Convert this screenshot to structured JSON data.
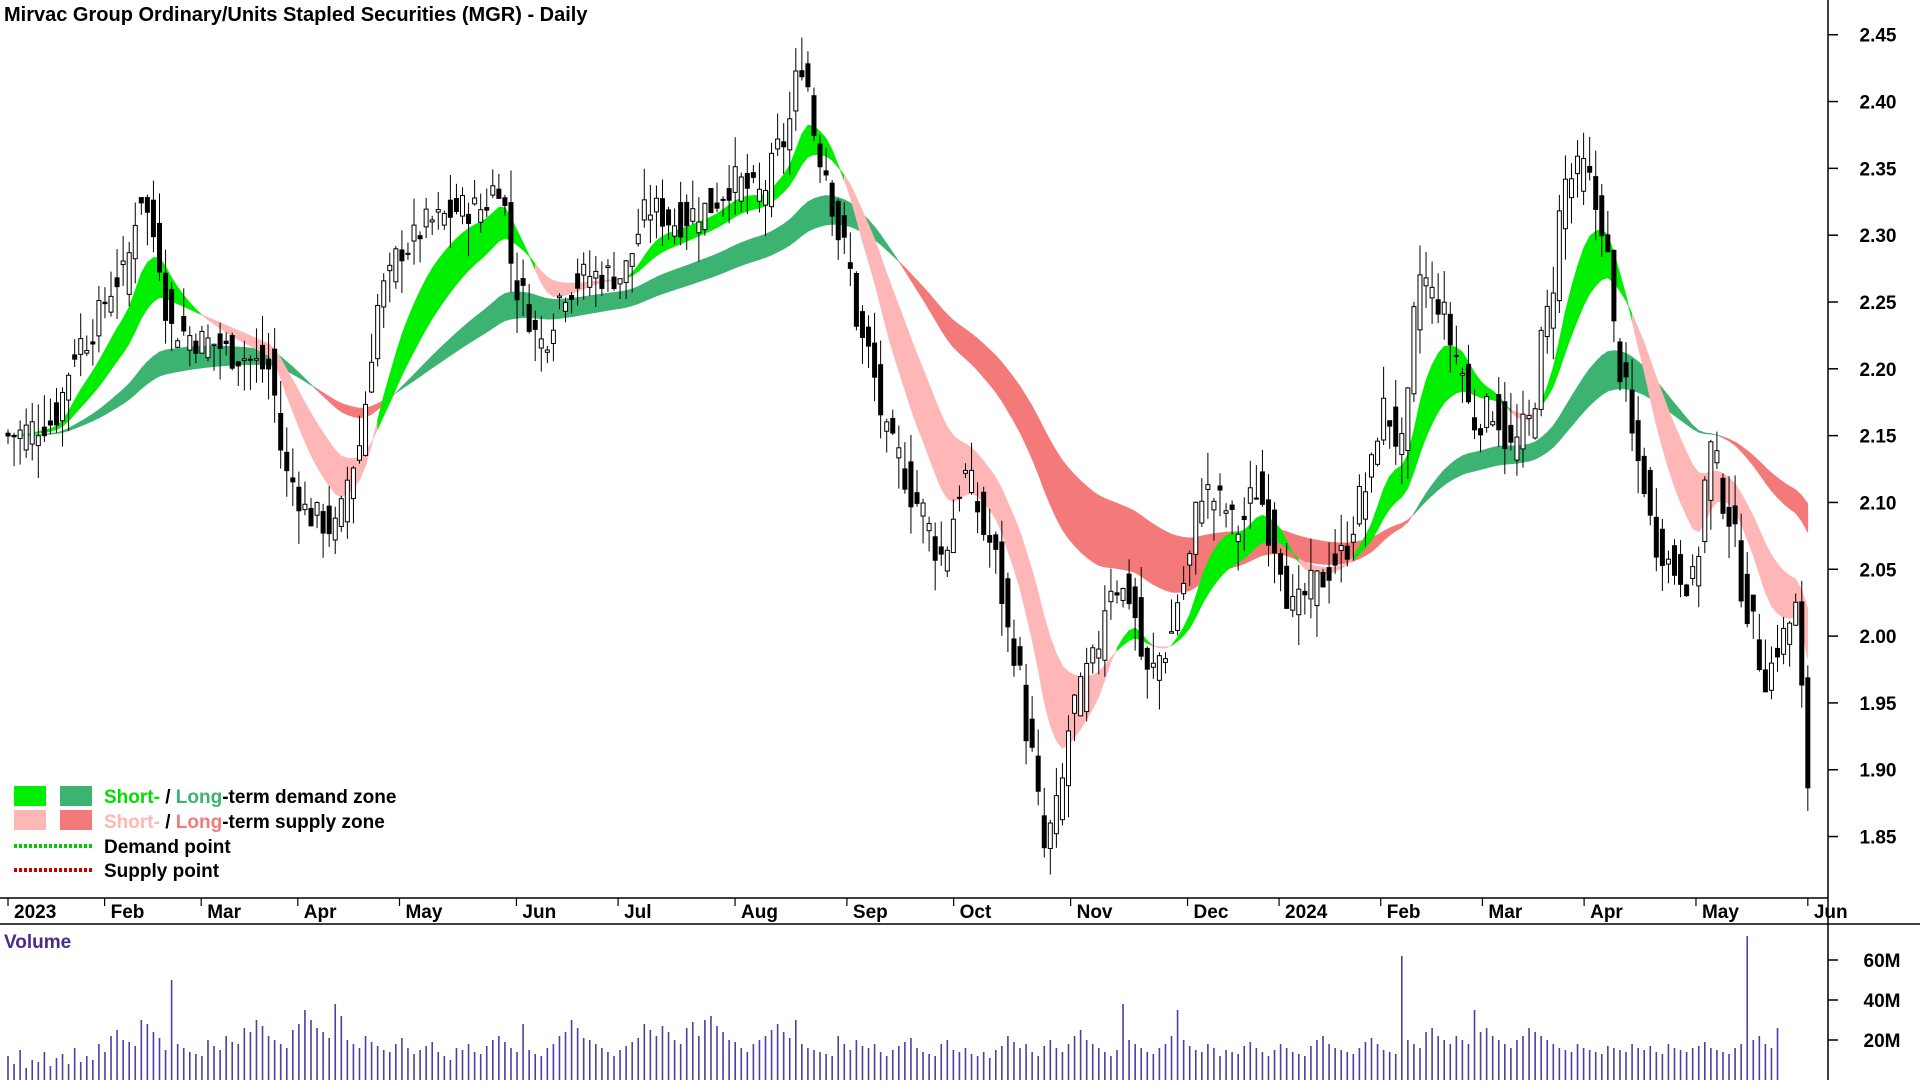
{
  "chart_data": {
    "type": "candlestick",
    "title": "Mirvac Group Ordinary/Units Stapled Securities (MGR) - Daily",
    "price_axis": {
      "ticks": [
        "1.85",
        "1.90",
        "1.95",
        "2.00",
        "2.05",
        "2.10",
        "2.15",
        "2.20",
        "2.25",
        "2.30",
        "2.35",
        "2.40",
        "2.45"
      ],
      "ylim": [
        1.81,
        2.47
      ]
    },
    "months": [
      "2023",
      "Feb",
      "Mar",
      "Apr",
      "May",
      "Jun",
      "Jul",
      "Aug",
      "Sep",
      "Oct",
      "Nov",
      "Dec",
      "2024",
      "Feb",
      "Mar",
      "Apr",
      "May",
      "Jun"
    ],
    "volume_panel": {
      "title": "Volume",
      "ticks": [
        "20M",
        "40M",
        "60M"
      ],
      "ylim": [
        0,
        75
      ]
    },
    "legend": {
      "row1_short": "Short-",
      "row1_sep": " / ",
      "row1_long": "Long",
      "row1_rest": "-term demand zone",
      "row2_short": "Short-",
      "row2_sep": " / ",
      "row2_long": "Long",
      "row2_rest": "-term supply zone",
      "demand_point": "Demand point",
      "supply_point": "Supply point"
    },
    "colors": {
      "short_demand": "#00ee00",
      "long_demand": "#3cb371",
      "short_supply": "#ffb6b6",
      "long_supply": "#f47a7a",
      "transition": "#ff6a1a",
      "demand_point": "#00cc00",
      "supply_point": "#cc0000",
      "volume": "#4b3fa8"
    },
    "price_key_points": [
      [
        0,
        2.15
      ],
      [
        7,
        2.16
      ],
      [
        12,
        2.22
      ],
      [
        19,
        2.27
      ],
      [
        22,
        2.33
      ],
      [
        24,
        2.3
      ],
      [
        27,
        2.23
      ],
      [
        33,
        2.22
      ],
      [
        38,
        2.21
      ],
      [
        43,
        2.2
      ],
      [
        46,
        2.12
      ],
      [
        50,
        2.09
      ],
      [
        54,
        2.08
      ],
      [
        57,
        2.13
      ],
      [
        62,
        2.26
      ],
      [
        65,
        2.29
      ],
      [
        70,
        2.31
      ],
      [
        75,
        2.32
      ],
      [
        78,
        2.32
      ],
      [
        81,
        2.34
      ],
      [
        84,
        2.26
      ],
      [
        88,
        2.22
      ],
      [
        92,
        2.26
      ],
      [
        96,
        2.27
      ],
      [
        101,
        2.27
      ],
      [
        106,
        2.32
      ],
      [
        110,
        2.31
      ],
      [
        115,
        2.32
      ],
      [
        120,
        2.34
      ],
      [
        124,
        2.33
      ],
      [
        128,
        2.37
      ],
      [
        131,
        2.43
      ],
      [
        134,
        2.36
      ],
      [
        138,
        2.29
      ],
      [
        141,
        2.22
      ],
      [
        146,
        2.14
      ],
      [
        150,
        2.1
      ],
      [
        154,
        2.06
      ],
      [
        158,
        2.12
      ],
      [
        162,
        2.07
      ],
      [
        166,
        1.99
      ],
      [
        169,
        1.91
      ],
      [
        171,
        1.84
      ],
      [
        173,
        1.87
      ],
      [
        176,
        1.95
      ],
      [
        179,
        1.98
      ],
      [
        182,
        2.04
      ],
      [
        185,
        2.03
      ],
      [
        188,
        1.97
      ],
      [
        191,
        1.99
      ],
      [
        194,
        2.04
      ],
      [
        197,
        2.11
      ],
      [
        200,
        2.1
      ],
      [
        203,
        2.08
      ],
      [
        206,
        2.11
      ],
      [
        209,
        2.07
      ],
      [
        212,
        2.02
      ],
      [
        216,
        2.04
      ],
      [
        220,
        2.06
      ],
      [
        224,
        2.11
      ],
      [
        227,
        2.17
      ],
      [
        230,
        2.14
      ],
      [
        233,
        2.27
      ],
      [
        236,
        2.25
      ],
      [
        239,
        2.21
      ],
      [
        242,
        2.16
      ],
      [
        245,
        2.17
      ],
      [
        248,
        2.14
      ],
      [
        251,
        2.16
      ],
      [
        254,
        2.24
      ],
      [
        257,
        2.34
      ],
      [
        260,
        2.35
      ],
      [
        263,
        2.31
      ],
      [
        266,
        2.2
      ],
      [
        269,
        2.13
      ],
      [
        272,
        2.07
      ],
      [
        275,
        2.05
      ],
      [
        278,
        2.04
      ],
      [
        281,
        2.14
      ],
      [
        284,
        2.09
      ],
      [
        287,
        2.02
      ],
      [
        290,
        1.97
      ],
      [
        293,
        2.0
      ],
      [
        295,
        2.02
      ],
      [
        297,
        1.89
      ]
    ],
    "volume_values_million": [
      12,
      8,
      15,
      6,
      10,
      9,
      14,
      7,
      11,
      13,
      8,
      16,
      9,
      12,
      10,
      18,
      14,
      22,
      25,
      20,
      19,
      17,
      30,
      28,
      24,
      21,
      15,
      50,
      18,
      16,
      14,
      13,
      12,
      20,
      17,
      15,
      22,
      19,
      18,
      26,
      24,
      30,
      27,
      22,
      20,
      18,
      16,
      25,
      28,
      35,
      30,
      26,
      24,
      21,
      38,
      32,
      20,
      18,
      16,
      22,
      19,
      17,
      15,
      14,
      18,
      21,
      16,
      13,
      15,
      17,
      19,
      14,
      12,
      10,
      16,
      15,
      18,
      14,
      13,
      17,
      20,
      22,
      19,
      16,
      14,
      28,
      15,
      13,
      12,
      16,
      18,
      22,
      24,
      30,
      26,
      21,
      20,
      18,
      16,
      14,
      12,
      15,
      17,
      19,
      21,
      28,
      25,
      22,
      27,
      24,
      20,
      18,
      26,
      29,
      22,
      30,
      32,
      27,
      24,
      20,
      19,
      16,
      14,
      18,
      20,
      22,
      25,
      28,
      24,
      21,
      30,
      18,
      16,
      15,
      14,
      13,
      12,
      22,
      18,
      15,
      20,
      17,
      16,
      18,
      14,
      12,
      15,
      17,
      19,
      21,
      16,
      14,
      13,
      12,
      18,
      20,
      15,
      14,
      16,
      13,
      12,
      14,
      11,
      15,
      17,
      22,
      19,
      16,
      18,
      14,
      12,
      17,
      20,
      16,
      14,
      18,
      22,
      25,
      20,
      18,
      16,
      14,
      12,
      15,
      38,
      20,
      18,
      16,
      14,
      13,
      16,
      18,
      22,
      35,
      20,
      17,
      15,
      14,
      18,
      16,
      12,
      15,
      14,
      13,
      17,
      19,
      16,
      14,
      12,
      15,
      18,
      16,
      14,
      13,
      12,
      17,
      20,
      22,
      18,
      16,
      15,
      14,
      13,
      16,
      19,
      21,
      18,
      15,
      14,
      13,
      62,
      20,
      18,
      16,
      24,
      26,
      22,
      20,
      18,
      22,
      20,
      18,
      35,
      24,
      26,
      22,
      20,
      18,
      16,
      20,
      22,
      26,
      24,
      22,
      20,
      18,
      16,
      15,
      14,
      18,
      16,
      15,
      14,
      13,
      17,
      16,
      15,
      14,
      18,
      16,
      15,
      17,
      14,
      13,
      18,
      16,
      15,
      14,
      16,
      17,
      19,
      16,
      15,
      14,
      13,
      16,
      18,
      72,
      20,
      22,
      18,
      16,
      26
    ]
  }
}
